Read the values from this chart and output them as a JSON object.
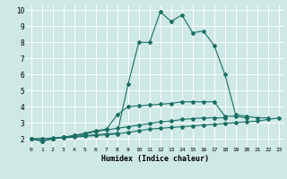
{
  "xlabel": "Humidex (Indice chaleur)",
  "xlim": [
    -0.5,
    23.5
  ],
  "ylim": [
    1.5,
    10.3
  ],
  "yticks": [
    2,
    3,
    4,
    5,
    6,
    7,
    8,
    9,
    10
  ],
  "xticks": [
    0,
    1,
    2,
    3,
    4,
    5,
    6,
    7,
    8,
    9,
    10,
    11,
    12,
    13,
    14,
    15,
    16,
    17,
    18,
    19,
    20,
    21,
    22,
    23
  ],
  "bg_color": "#cde8e5",
  "grid_color": "#ffffff",
  "line_color": "#1a6e64",
  "series": [
    [
      2.0,
      1.85,
      2.0,
      2.1,
      2.15,
      2.2,
      2.25,
      2.3,
      2.35,
      5.4,
      8.0,
      8.0,
      9.9,
      9.3,
      9.7,
      8.6,
      8.7,
      7.8,
      6.0,
      3.5,
      3.4,
      3.3,
      3.3
    ],
    [
      2.0,
      1.85,
      2.0,
      2.1,
      2.2,
      2.35,
      2.5,
      2.6,
      3.5,
      4.0,
      4.05,
      4.1,
      4.15,
      4.2,
      4.3,
      4.3,
      4.3,
      4.3,
      3.4,
      3.4,
      3.3
    ],
    [
      2.0,
      2.0,
      2.05,
      2.1,
      2.2,
      2.3,
      2.45,
      2.55,
      2.65,
      2.75,
      2.85,
      2.95,
      3.05,
      3.1,
      3.2,
      3.25,
      3.3,
      3.3,
      3.3
    ],
    [
      2.0,
      2.0,
      2.0,
      2.05,
      2.1,
      2.15,
      2.2,
      2.25,
      2.3,
      2.4,
      2.5,
      2.6,
      2.65,
      2.7,
      2.75,
      2.8,
      2.85,
      2.9,
      2.95,
      3.0,
      3.05,
      3.1,
      3.2,
      3.3
    ]
  ],
  "series_x": [
    [
      0,
      1,
      2,
      3,
      4,
      5,
      6,
      7,
      8,
      9,
      10,
      11,
      12,
      13,
      14,
      15,
      16,
      17,
      18,
      19,
      20,
      21,
      22
    ],
    [
      0,
      1,
      2,
      3,
      4,
      5,
      6,
      7,
      8,
      9,
      10,
      11,
      12,
      13,
      14,
      15,
      16,
      17,
      18,
      19,
      20
    ],
    [
      0,
      1,
      2,
      3,
      4,
      5,
      6,
      7,
      8,
      9,
      10,
      11,
      12,
      13,
      14,
      15,
      16,
      17,
      18
    ],
    [
      0,
      1,
      2,
      3,
      4,
      5,
      6,
      7,
      8,
      9,
      10,
      11,
      12,
      13,
      14,
      15,
      16,
      17,
      18,
      19,
      20,
      21,
      22,
      23
    ]
  ]
}
